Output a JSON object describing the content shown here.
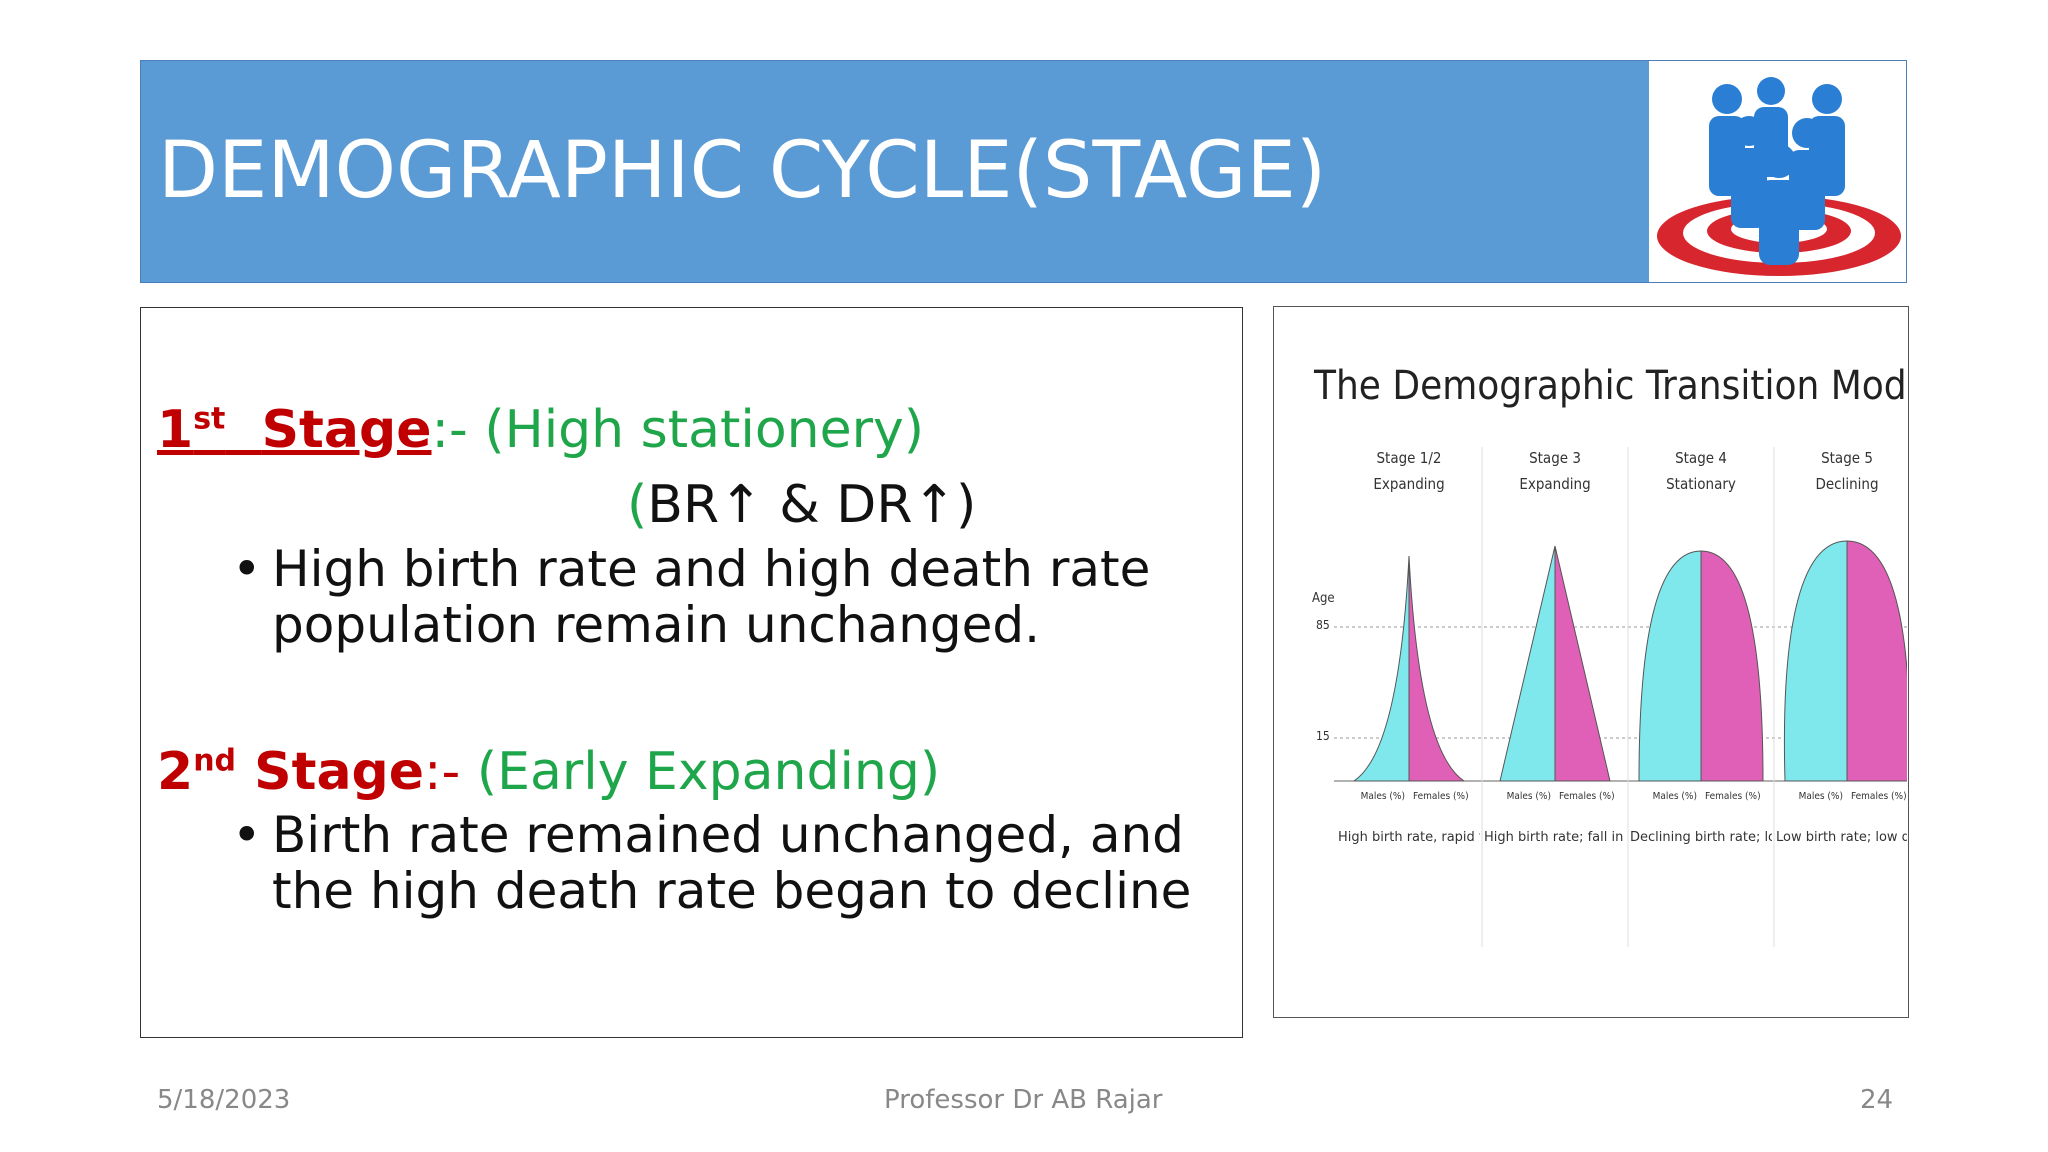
{
  "header": {
    "title": "DEMOGRAPHIC CYCLE(STAGE)"
  },
  "stages": [
    {
      "number": "1",
      "ordinal": "st",
      "word": "Stage",
      "separator": ":-",
      "description": "(High stationery)",
      "indicator": {
        "open": "(",
        "text": "BR↑ & DR↑",
        "close": ")"
      },
      "bullet_lines": [
        "High birth rate and high death rate",
        "population remain unchanged."
      ]
    },
    {
      "number": "2",
      "ordinal": "nd",
      "word": "Stage",
      "separator": ":-",
      "description": "(Early Expanding)",
      "bullet_lines": [
        "Birth rate remained unchanged, and",
        "the high death rate began to decline"
      ]
    }
  ],
  "figure": {
    "title": "The Demographic Transition Model",
    "age_label": "Age",
    "age_ticks": [
      "85",
      "15"
    ],
    "males": "Males (%)",
    "females": "Females (%)",
    "columns": [
      {
        "stage": "Stage 1/2",
        "phase": "Expanding",
        "note": "High birth rate, rapid fall in each upward age group due to high death rates, short life expectancy"
      },
      {
        "stage": "Stage 3",
        "phase": "Expanding",
        "note": "High birth rate; fall in death rate as more living in middle age; slightly longer life expectancy"
      },
      {
        "stage": "Stage 4",
        "phase": "Stationary",
        "note": "Declining birth rate; low death rate; more people living to old age"
      },
      {
        "stage": "Stage 5",
        "phase": "Declining",
        "note": "Low birth rate; low death rate; higher dependency ratio; longer life expectancy"
      }
    ]
  },
  "footer": {
    "date": "5/18/2023",
    "presenter": "Professor Dr AB Rajar",
    "page": "24"
  }
}
